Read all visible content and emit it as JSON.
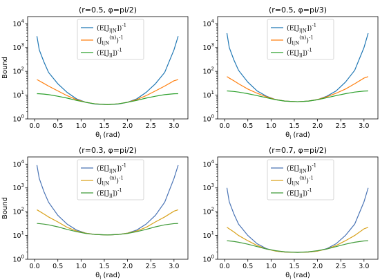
{
  "chart_data": [
    {
      "type": "line",
      "title": "(r=0.5, φ=pi/2)",
      "xlabel": "θ_l (rad)",
      "ylabel": "Bound",
      "xlim": [
        -0.15,
        3.3
      ],
      "ylim_log10": [
        0,
        4.3
      ],
      "yscale": "log",
      "legend_position": "top-center",
      "x_ticks": [
        "0.0",
        "0.5",
        "1.0",
        "1.5",
        "2.0",
        "2.5",
        "3.0"
      ],
      "y_ticks": [
        "10^0",
        "10^1",
        "10^2",
        "10^3",
        "10^4"
      ],
      "x": [
        0.05,
        0.1,
        0.2,
        0.3,
        0.5,
        0.7,
        0.9,
        1.1,
        1.3,
        1.5708,
        1.8,
        2.0,
        2.2,
        2.4,
        2.6,
        2.8,
        3.0,
        3.09
      ],
      "series": [
        {
          "name": "(E[J_{l|N}])^{-1}",
          "color": "#1f77b4",
          "values": [
            3000,
            800,
            250,
            90,
            30,
            13,
            7,
            5,
            4.2,
            4.0,
            4.2,
            5,
            7,
            13,
            30,
            90,
            800,
            3000
          ]
        },
        {
          "name": "(J_{l|N}^{(n)})^{-1}",
          "color": "#ff7f0e",
          "values": [
            45,
            40,
            31,
            24,
            15,
            9.5,
            6.5,
            5,
            4.3,
            4.0,
            4.3,
            5,
            6.5,
            9.5,
            15,
            24,
            40,
            45
          ]
        },
        {
          "name": "(E[J_{ll}])^{-1}",
          "color": "#2ca02c",
          "values": [
            11.5,
            11.4,
            11,
            10.5,
            9,
            7.5,
            6,
            5,
            4.3,
            4.0,
            4.3,
            5,
            6,
            7.5,
            9,
            10.5,
            11.4,
            11.5
          ]
        }
      ]
    },
    {
      "type": "line",
      "title": "(r=0.5, φ=pi/3)",
      "xlabel": "θ_l (rad)",
      "ylabel": "",
      "xlim": [
        -0.15,
        3.3
      ],
      "ylim_log10": [
        0,
        4.3
      ],
      "yscale": "log",
      "legend_position": "top-center",
      "x_ticks": [
        "0.0",
        "0.5",
        "1.0",
        "1.5",
        "2.0",
        "2.5",
        "3.0"
      ],
      "y_ticks": [
        "10^0",
        "10^1",
        "10^2",
        "10^3",
        "10^4"
      ],
      "x": [
        0.05,
        0.1,
        0.2,
        0.3,
        0.5,
        0.7,
        0.9,
        1.1,
        1.3,
        1.5708,
        1.8,
        2.0,
        2.2,
        2.4,
        2.6,
        2.8,
        3.0,
        3.09
      ],
      "series": [
        {
          "name": "(E[J_{l|N}])^{-1}",
          "color": "#1f77b4",
          "values": [
            4000,
            1000,
            300,
            110,
            35,
            15,
            9,
            6.5,
            5.6,
            5.3,
            5.6,
            6.5,
            9,
            15,
            35,
            110,
            1000,
            4000
          ]
        },
        {
          "name": "(J_{l|N}^{(n)})^{-1}",
          "color": "#ff7f0e",
          "values": [
            60,
            52,
            40,
            30,
            18,
            12,
            8.5,
            6.5,
            5.6,
            5.3,
            5.6,
            6.5,
            8.5,
            12,
            18,
            30,
            52,
            60
          ]
        },
        {
          "name": "(E[J_{ll}])^{-1}",
          "color": "#2ca02c",
          "values": [
            15,
            14.8,
            14.2,
            13.4,
            11.5,
            9.5,
            7.8,
            6.4,
            5.6,
            5.3,
            5.6,
            6.4,
            7.8,
            9.5,
            11.5,
            13.4,
            14.8,
            15
          ]
        }
      ]
    },
    {
      "type": "line",
      "title": "(r=0.3, φ=pi/2)",
      "xlabel": "θ_l (rad)",
      "ylabel": "Bound",
      "xlim": [
        -0.15,
        3.3
      ],
      "ylim_log10": [
        0,
        4.3
      ],
      "yscale": "log",
      "legend_position": "top-center",
      "x_ticks": [
        "0.0",
        "0.5",
        "1.0",
        "1.5",
        "2.0",
        "2.5",
        "3.0"
      ],
      "y_ticks": [
        "10^0",
        "10^1",
        "10^2",
        "10^3",
        "10^4"
      ],
      "x": [
        0.05,
        0.1,
        0.2,
        0.3,
        0.5,
        0.7,
        0.9,
        1.1,
        1.3,
        1.5708,
        1.8,
        2.0,
        2.2,
        2.4,
        2.6,
        2.8,
        3.0,
        3.09
      ],
      "series": [
        {
          "name": "(E[J_{l|N}])^{-1}",
          "color": "#4a74b5",
          "values": [
            9000,
            2500,
            700,
            250,
            70,
            30,
            17,
            12.5,
            11,
            10.5,
            11,
            12.5,
            17,
            30,
            70,
            250,
            2500,
            9000
          ]
        },
        {
          "name": "(J_{l|N}^{(n)})^{-1}",
          "color": "#d9a21c",
          "values": [
            120,
            105,
            80,
            60,
            37,
            22,
            15.5,
            12.5,
            11,
            10.5,
            11,
            12.5,
            15.5,
            22,
            37,
            60,
            105,
            120
          ]
        },
        {
          "name": "(E[J_{ll}])^{-1}",
          "color": "#3f9a38",
          "values": [
            32,
            31.5,
            30,
            28,
            23,
            18,
            14.5,
            12.2,
            11,
            10.5,
            11,
            12.2,
            14.5,
            18,
            23,
            28,
            31.5,
            32
          ]
        }
      ]
    },
    {
      "type": "line",
      "title": "(r=0.7, φ=pi/2)",
      "xlabel": "θ_l (rad)",
      "ylabel": "",
      "xlim": [
        -0.15,
        3.3
      ],
      "ylim_log10": [
        0,
        4.3
      ],
      "yscale": "log",
      "legend_position": "top-center",
      "x_ticks": [
        "0.0",
        "0.5",
        "1.0",
        "1.5",
        "2.0",
        "2.5",
        "3.0"
      ],
      "y_ticks": [
        "10^0",
        "10^1",
        "10^2",
        "10^3",
        "10^4"
      ],
      "x": [
        0.05,
        0.1,
        0.2,
        0.3,
        0.5,
        0.7,
        0.9,
        1.1,
        1.3,
        1.5708,
        1.8,
        2.0,
        2.2,
        2.4,
        2.6,
        2.8,
        3.0,
        3.09
      ],
      "series": [
        {
          "name": "(E[J_{l|N}])^{-1}",
          "color": "#4a74b5",
          "values": [
            1000,
            260,
            80,
            30,
            10,
            4.5,
            2.8,
            2.2,
            2.0,
            1.95,
            2.0,
            2.2,
            2.8,
            4.5,
            10,
            30,
            260,
            1000
          ]
        },
        {
          "name": "(J_{l|N}^{(n)})^{-1}",
          "color": "#d9a21c",
          "values": [
            22,
            19,
            14,
            10,
            6,
            3.8,
            2.7,
            2.2,
            2.0,
            1.95,
            2.0,
            2.2,
            2.7,
            3.8,
            6,
            10,
            19,
            22
          ]
        },
        {
          "name": "(E[J_{ll}])^{-1}",
          "color": "#3f9a38",
          "values": [
            6,
            5.9,
            5.6,
            5.2,
            4.3,
            3.4,
            2.7,
            2.3,
            2.05,
            1.95,
            2.05,
            2.3,
            2.7,
            3.4,
            4.3,
            5.2,
            5.9,
            6
          ]
        }
      ]
    }
  ]
}
